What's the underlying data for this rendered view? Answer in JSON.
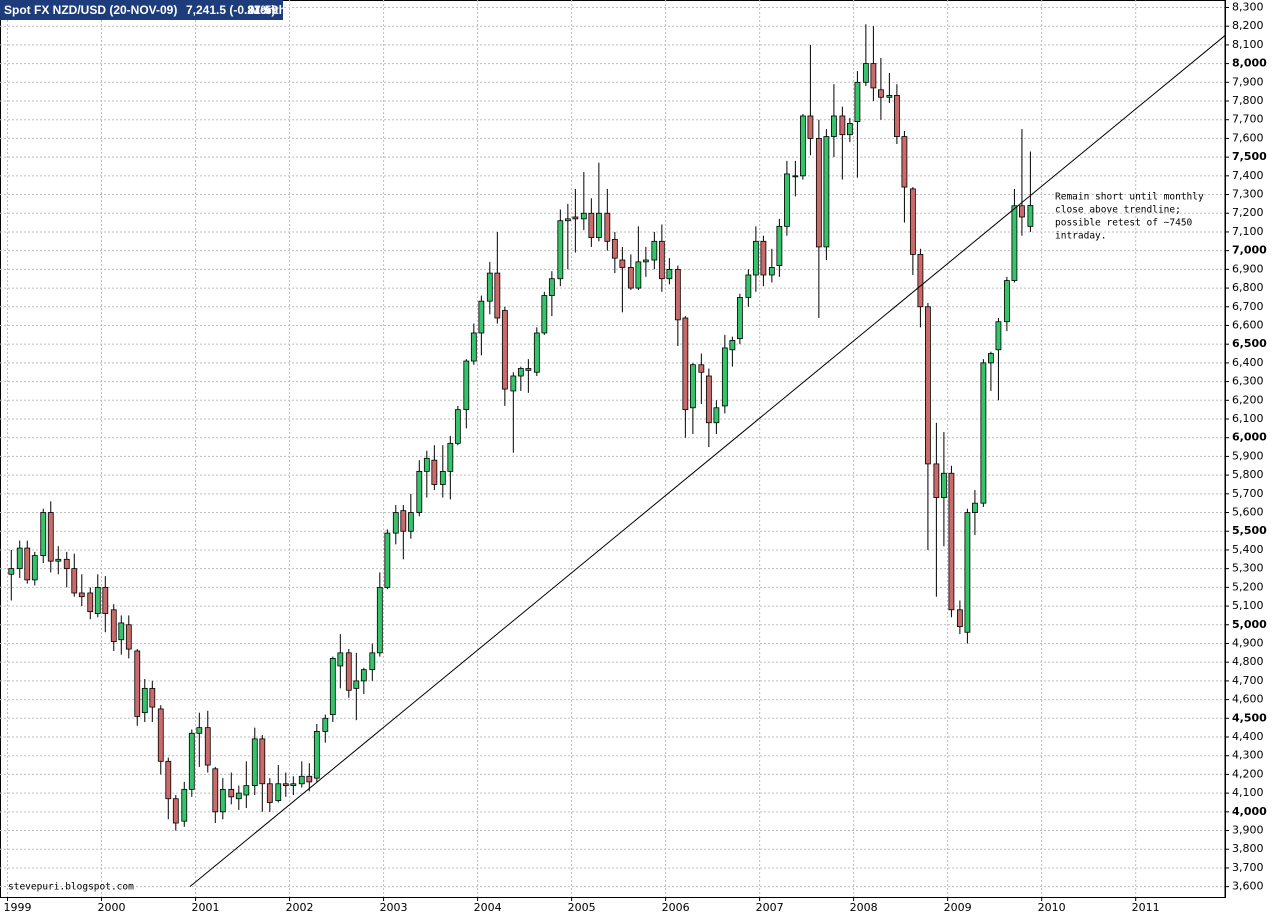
{
  "chart_data": {
    "type": "candlestick",
    "title": "Spot FX NZD/USD (20-NOV-09)",
    "last_value": "7,241.5 (-0.87%)",
    "period": "Monthly",
    "time": "21:59",
    "watermark": "stevepuri.blogspot.com",
    "annotation": [
      "Remain short until monthly",
      "close above trendline;",
      "possible retest of ~7450",
      "intraday."
    ],
    "up_color": "#36c46a",
    "down_color": "#c96b6b",
    "grid": true,
    "xlim": [
      1998.92,
      2011.95
    ],
    "xticks": [
      1999,
      2000,
      2001,
      2002,
      2003,
      2004,
      2005,
      2006,
      2007,
      2008,
      2009,
      2010,
      2011
    ],
    "ylim": [
      3550,
      8340
    ],
    "yticks": [
      {
        "value": 3600,
        "label": "3,600"
      },
      {
        "value": 3700,
        "label": "3,700"
      },
      {
        "value": 3800,
        "label": "3,800"
      },
      {
        "value": 3900,
        "label": "3,900"
      },
      {
        "value": 4000,
        "label": "4,000"
      },
      {
        "value": 4100,
        "label": "4,100"
      },
      {
        "value": 4200,
        "label": "4,200"
      },
      {
        "value": 4300,
        "label": "4,300"
      },
      {
        "value": 4400,
        "label": "4,400"
      },
      {
        "value": 4500,
        "label": "4,500"
      },
      {
        "value": 4600,
        "label": "4,600"
      },
      {
        "value": 4700,
        "label": "4,700"
      },
      {
        "value": 4800,
        "label": "4,800"
      },
      {
        "value": 4900,
        "label": "4,900"
      },
      {
        "value": 5000,
        "label": "5,000"
      },
      {
        "value": 5100,
        "label": "5,100"
      },
      {
        "value": 5200,
        "label": "5,200"
      },
      {
        "value": 5300,
        "label": "5,300"
      },
      {
        "value": 5400,
        "label": "5,400"
      },
      {
        "value": 5500,
        "label": "5,500"
      },
      {
        "value": 5600,
        "label": "5,600"
      },
      {
        "value": 5700,
        "label": "5,700"
      },
      {
        "value": 5800,
        "label": "5,800"
      },
      {
        "value": 5900,
        "label": "5,900"
      },
      {
        "value": 6000,
        "label": "6,000"
      },
      {
        "value": 6100,
        "label": "6,100"
      },
      {
        "value": 6200,
        "label": "6,200"
      },
      {
        "value": 6300,
        "label": "6,300"
      },
      {
        "value": 6400,
        "label": "6,400"
      },
      {
        "value": 6500,
        "label": "6,500"
      },
      {
        "value": 6600,
        "label": "6,600"
      },
      {
        "value": 6700,
        "label": "6,700"
      },
      {
        "value": 6800,
        "label": "6,800"
      },
      {
        "value": 6900,
        "label": "6,900"
      },
      {
        "value": 7000,
        "label": "7,000"
      },
      {
        "value": 7100,
        "label": "7,100"
      },
      {
        "value": 7200,
        "label": "7,200"
      },
      {
        "value": 7300,
        "label": "7,300"
      },
      {
        "value": 7400,
        "label": "7,400"
      },
      {
        "value": 7500,
        "label": "7,500"
      },
      {
        "value": 7600,
        "label": "7,600"
      },
      {
        "value": 7700,
        "label": "7,700"
      },
      {
        "value": 7800,
        "label": "7,800"
      },
      {
        "value": 7900,
        "label": "7,900"
      },
      {
        "value": 8000,
        "label": "8,000"
      },
      {
        "value": 8100,
        "label": "8,100"
      },
      {
        "value": 8200,
        "label": "8,200"
      },
      {
        "value": 8300,
        "label": "8,300"
      }
    ],
    "trendline": {
      "x": [
        2000.94,
        2011.95
      ],
      "y": [
        3600,
        8150
      ]
    },
    "x": [
      1999.04,
      1999.13,
      1999.21,
      1999.29,
      1999.38,
      1999.46,
      1999.54,
      1999.63,
      1999.71,
      1999.79,
      1999.88,
      1999.96,
      2000.04,
      2000.13,
      2000.21,
      2000.29,
      2000.38,
      2000.46,
      2000.54,
      2000.63,
      2000.71,
      2000.79,
      2000.88,
      2000.96,
      2001.04,
      2001.13,
      2001.21,
      2001.29,
      2001.38,
      2001.46,
      2001.54,
      2001.63,
      2001.71,
      2001.79,
      2001.88,
      2001.96,
      2002.04,
      2002.13,
      2002.21,
      2002.29,
      2002.38,
      2002.46,
      2002.54,
      2002.63,
      2002.71,
      2002.79,
      2002.88,
      2002.96,
      2003.04,
      2003.13,
      2003.21,
      2003.29,
      2003.38,
      2003.46,
      2003.54,
      2003.63,
      2003.71,
      2003.79,
      2003.88,
      2003.96,
      2004.04,
      2004.13,
      2004.21,
      2004.29,
      2004.38,
      2004.46,
      2004.54,
      2004.63,
      2004.71,
      2004.79,
      2004.88,
      2004.96,
      2005.04,
      2005.13,
      2005.21,
      2005.29,
      2005.38,
      2005.46,
      2005.54,
      2005.63,
      2005.71,
      2005.79,
      2005.88,
      2005.96,
      2006.04,
      2006.13,
      2006.21,
      2006.29,
      2006.38,
      2006.46,
      2006.54,
      2006.63,
      2006.71,
      2006.79,
      2006.88,
      2006.96,
      2007.04,
      2007.13,
      2007.21,
      2007.29,
      2007.38,
      2007.46,
      2007.54,
      2007.63,
      2007.71,
      2007.79,
      2007.88,
      2007.96,
      2008.04,
      2008.13,
      2008.21,
      2008.29,
      2008.38,
      2008.46,
      2008.54,
      2008.63,
      2008.71,
      2008.79,
      2008.88,
      2008.96,
      2009.04,
      2009.13,
      2009.21,
      2009.29,
      2009.38,
      2009.46,
      2009.54,
      2009.63,
      2009.71,
      2009.79,
      2009.88
    ],
    "open": [
      5270,
      5300,
      5410,
      5240,
      5370,
      5600,
      5340,
      5350,
      5300,
      5170,
      5170,
      5060,
      5200,
      5080,
      4920,
      5000,
      4860,
      4530,
      4660,
      4550,
      4270,
      4070,
      3950,
      4120,
      4420,
      4450,
      4230,
      4000,
      4120,
      4070,
      4090,
      4140,
      4390,
      4150,
      4060,
      4150,
      4140,
      4150,
      4190,
      4180,
      4430,
      4520,
      4780,
      4850,
      4660,
      4700,
      4760,
      4850,
      5200,
      5490,
      5610,
      5500,
      5600,
      5820,
      5880,
      5750,
      5820,
      5970,
      6150,
      6410,
      6560,
      6730,
      6880,
      6680,
      6250,
      6330,
      6370,
      6350,
      6560,
      6760,
      6850,
      7160,
      7180,
      7170,
      7200,
      7070,
      7200,
      7060,
      6950,
      6910,
      6800,
      6940,
      6950,
      7050,
      6850,
      6900,
      6640,
      6160,
      6390,
      6330,
      6080,
      6170,
      6470,
      6530,
      6750,
      6870,
      7050,
      6870,
      6920,
      7130,
      7400,
      7400,
      7720,
      7600,
      7020,
      7610,
      7720,
      7620,
      7690,
      7900,
      8000,
      7860,
      7820,
      7830,
      7610,
      7330,
      6980,
      6700,
      5860,
      5680,
      5810,
      5080,
      4960,
      5600,
      5650,
      6400,
      6470,
      6620,
      6840,
      7240,
      7130
    ],
    "high": [
      5400,
      5450,
      5450,
      5390,
      5620,
      5660,
      5420,
      5390,
      5380,
      5270,
      5200,
      5270,
      5260,
      5110,
      5050,
      5050,
      4870,
      4710,
      4700,
      4570,
      4290,
      4090,
      4160,
      4440,
      4530,
      4540,
      4240,
      4180,
      4210,
      4140,
      4270,
      4450,
      4410,
      4180,
      4250,
      4210,
      4190,
      4270,
      4260,
      4470,
      4520,
      4830,
      4950,
      4870,
      4850,
      4770,
      4900,
      5280,
      5510,
      5640,
      5640,
      5700,
      5880,
      5930,
      5960,
      5960,
      6010,
      6170,
      6420,
      6610,
      6760,
      6940,
      7100,
      6700,
      6350,
      6380,
      6420,
      6590,
      6780,
      6890,
      7220,
      7250,
      7330,
      7420,
      7280,
      7470,
      7330,
      7100,
      7020,
      6980,
      7130,
      7020,
      7100,
      7140,
      6960,
      6920,
      6650,
      6400,
      6450,
      6370,
      6200,
      6550,
      6540,
      6770,
      6900,
      7130,
      7080,
      7010,
      7170,
      7480,
      7480,
      7730,
      8100,
      7700,
      7650,
      7890,
      7770,
      7710,
      7960,
      8210,
      8200,
      8030,
      7950,
      7890,
      7640,
      7340,
      7010,
      6720,
      6080,
      6030,
      5850,
      5130,
      5620,
      5720,
      6420,
      6460,
      6640,
      6860,
      7330,
      7650,
      7530
    ],
    "low": [
      5130,
      5250,
      5220,
      5210,
      5330,
      5280,
      5270,
      5200,
      5150,
      5100,
      5030,
      5040,
      4960,
      4860,
      4840,
      4820,
      4460,
      4480,
      4480,
      4200,
      3960,
      3900,
      3920,
      4080,
      4240,
      4210,
      3940,
      3960,
      4040,
      4010,
      4020,
      4090,
      4000,
      4000,
      4050,
      4080,
      4090,
      4130,
      4110,
      4160,
      4370,
      4480,
      4660,
      4610,
      4490,
      4630,
      4700,
      4830,
      5190,
      5430,
      5350,
      5460,
      5580,
      5680,
      5720,
      5680,
      5670,
      5960,
      6050,
      6390,
      6440,
      6660,
      6610,
      6170,
      5920,
      6250,
      6240,
      6330,
      6550,
      6650,
      6810,
      6900,
      6990,
      7110,
      7020,
      7050,
      7000,
      6880,
      6670,
      6790,
      6790,
      6860,
      6900,
      6780,
      6820,
      6490,
      6000,
      6020,
      6180,
      5950,
      6020,
      6130,
      6380,
      6500,
      6700,
      6780,
      6810,
      6830,
      6860,
      7080,
      7290,
      7380,
      7510,
      6640,
      6950,
      7500,
      7380,
      7580,
      7390,
      7880,
      7800,
      7700,
      7790,
      7570,
      7150,
      6870,
      6590,
      5400,
      5150,
      5420,
      5040,
      4950,
      4900,
      5480,
      5630,
      6250,
      6200,
      6570,
      6830,
      7080,
      7100
    ],
    "close": [
      5300,
      5410,
      5240,
      5370,
      5600,
      5340,
      5350,
      5300,
      5170,
      5150,
      5070,
      5200,
      5060,
      4910,
      5010,
      4870,
      4510,
      4660,
      4560,
      4270,
      4070,
      3940,
      4120,
      4420,
      4450,
      4250,
      4000,
      4120,
      4080,
      4100,
      4140,
      4390,
      4150,
      4050,
      4150,
      4140,
      4150,
      4190,
      4160,
      4430,
      4500,
      4820,
      4850,
      4650,
      4700,
      4760,
      4850,
      5200,
      5490,
      5600,
      5500,
      5600,
      5820,
      5890,
      5750,
      5820,
      5970,
      6150,
      6410,
      6560,
      6730,
      6880,
      6640,
      6260,
      6330,
      6370,
      6360,
      6560,
      6760,
      6850,
      7160,
      7170,
      7170,
      7200,
      7070,
      7200,
      7050,
      6960,
      6910,
      6800,
      6940,
      6950,
      7050,
      6850,
      6900,
      6630,
      6150,
      6390,
      6350,
      6080,
      6160,
      6480,
      6520,
      6750,
      6870,
      7050,
      6870,
      6910,
      7130,
      7410,
      7400,
      7720,
      7600,
      7020,
      7610,
      7720,
      7620,
      7680,
      7900,
      8000,
      7870,
      7820,
      7830,
      7610,
      7340,
      6980,
      6700,
      5860,
      5680,
      5810,
      5080,
      4990,
      5600,
      5650,
      6400,
      6450,
      6620,
      6840,
      7240,
      7180,
      7241.5
    ]
  }
}
